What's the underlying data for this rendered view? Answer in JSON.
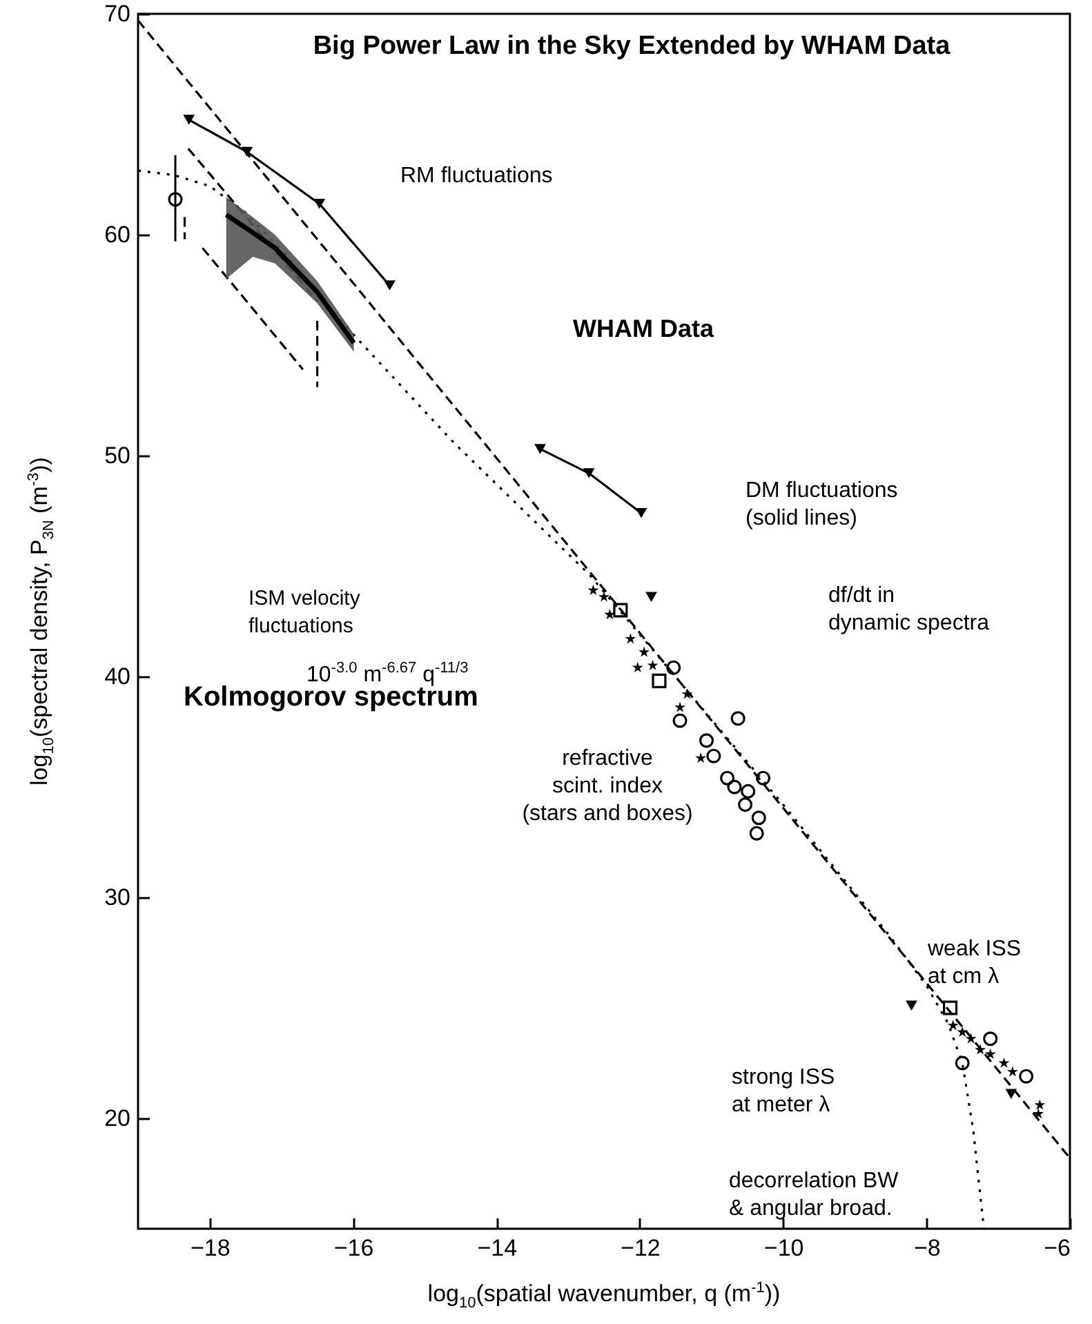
{
  "chart_data": {
    "type": "scatter",
    "title": "Big Power Law in the Sky Extended by WHAM Data",
    "xlabel": "log$_{10}$(spatial wavenumber, q (m$^{-1}$))",
    "ylabel": "log$_{10}$(spectral density, P$_{3N}$ (m$^{-3}$))",
    "xlim": [
      -19,
      -6
    ],
    "ylim": [
      15,
      70
    ],
    "xticks": [
      -18,
      -16,
      -14,
      -12,
      -10,
      -8,
      -6
    ],
    "yticks": [
      20,
      30,
      40,
      50,
      60,
      70
    ],
    "grid": false,
    "series": [
      {
        "type": "line",
        "line_style": "dashed",
        "marker": "none",
        "color": "#000000",
        "x": [
          -19,
          -6
        ],
        "values": [
          69.7,
          18.2
        ]
      },
      {
        "type": "line",
        "line_style": "dotted",
        "marker": "none",
        "color": "#000000",
        "x": [
          -19,
          -18.5,
          -18,
          -17.5,
          -17,
          -16,
          -14.6,
          -12.7,
          -10,
          -8.5,
          -8,
          -7.7,
          -7.5,
          -7.35,
          -7.2
        ],
        "values": [
          62.9,
          62.7,
          62.2,
          61,
          59.3,
          55.5,
          50.6,
          44.6,
          34.2,
          28.2,
          26,
          24.3,
          22.5,
          19.5,
          15
        ]
      },
      {
        "type": "line",
        "line_style": "dashed",
        "marker": "none",
        "color": "#000000",
        "x": [
          -18.3,
          -16.5
        ],
        "values": [
          63.9,
          57
        ]
      },
      {
        "type": "line",
        "line_style": "dashed",
        "marker": "none",
        "color": "#000000",
        "x": [
          -18.1,
          -16.7
        ],
        "values": [
          59.4,
          53.9
        ]
      },
      {
        "type": "line",
        "line_style": "dashed",
        "marker": "none",
        "color": "#000000",
        "x": [
          -16.5,
          -16.5
        ],
        "values": [
          56.1,
          53.1
        ]
      },
      {
        "type": "line",
        "line_style": "dashed",
        "marker": "none",
        "color": "#000000",
        "x": [
          -18.35,
          -18.35
        ],
        "values": [
          60.8,
          59.8
        ]
      },
      {
        "type": "line",
        "line_style": "solid",
        "marker": "triangle",
        "color": "#000000",
        "x": [
          -18.29,
          -17.48,
          -16.47,
          -15.49
        ],
        "values": [
          65.2,
          63.75,
          61.4,
          57.7
        ]
      },
      {
        "type": "line",
        "line_style": "solid",
        "marker": "triangle",
        "color": "#000000",
        "x": [
          -13.39,
          -12.71,
          -11.98
        ],
        "values": [
          50.3,
          49.2,
          47.4
        ]
      },
      {
        "type": "line",
        "line_style": "solid",
        "marker": "none",
        "color": "#000000",
        "x": [
          -17.77,
          -17.4,
          -17.09,
          -16.5,
          -15.99
        ],
        "values": [
          60.9,
          60.1,
          59.4,
          57.4,
          55.1
        ],
        "lower": [
          58,
          59,
          58.7,
          56.9,
          54.7
        ],
        "upper": [
          61.7,
          60.8,
          60,
          57.9,
          55.5
        ]
      },
      {
        "marker": "circle",
        "color": "#000000",
        "x": [
          -18.48
        ],
        "values": [
          61.6
        ],
        "errors": [
          [
            59.7,
            63.6
          ]
        ]
      },
      {
        "marker": "star",
        "color": "#000000",
        "x": [
          -12.65,
          -12.5,
          -12.42,
          -12.13,
          -11.94,
          -12.03,
          -11.82,
          -11.34,
          -11.44,
          -11.15,
          -7.63,
          -7.5,
          -7.38,
          -7.25,
          -7.11,
          -6.92,
          -6.8,
          -6.42,
          -6.44
        ],
        "values": [
          43.9,
          43.6,
          42.8,
          41.7,
          41.1,
          40.4,
          40.5,
          39.2,
          38.6,
          36.3,
          24.2,
          23.9,
          23.6,
          23.1,
          22.9,
          22.5,
          22.1,
          20.6,
          20.2
        ]
      },
      {
        "marker": "square",
        "color": "#000000",
        "x": [
          -12.27,
          -11.73,
          -7.67
        ],
        "values": [
          43,
          39.8,
          25
        ]
      },
      {
        "marker": "circle",
        "color": "#000000",
        "x": [
          -11.53,
          -11.44,
          -10.63,
          -11.07,
          -10.97,
          -10.78,
          -10.28,
          -10.68,
          -10.49,
          -10.53,
          -10.34,
          -10.37,
          -7.11,
          -6.61,
          -7.5
        ],
        "values": [
          40.4,
          38,
          38.1,
          37.1,
          36.4,
          35.4,
          35.4,
          35,
          34.8,
          34.2,
          33.6,
          32.9,
          23.6,
          21.9,
          22.5
        ]
      },
      {
        "marker": "triangle",
        "color": "#000000",
        "x": [
          -11.84,
          -6.82,
          -8.21
        ],
        "values": [
          43.6,
          21.1,
          25.1
        ]
      }
    ],
    "annotations": [
      "RM fluctuations",
      "WHAM Data",
      "ISM velocity\nfluctuations",
      "DM fluctuations\n(solid lines)",
      "10$^{-3.0}$ m$^{-6.67}$ q$^{-11/3}$",
      "Kolmogorov spectrum",
      "refractive\nscint. index\n(stars and boxes)",
      "df/dt in\ndynamic spectra",
      "weak ISS\nat cm λ",
      "strong ISS\nat meter λ",
      "decorrelation BW\n& angular broad."
    ]
  }
}
